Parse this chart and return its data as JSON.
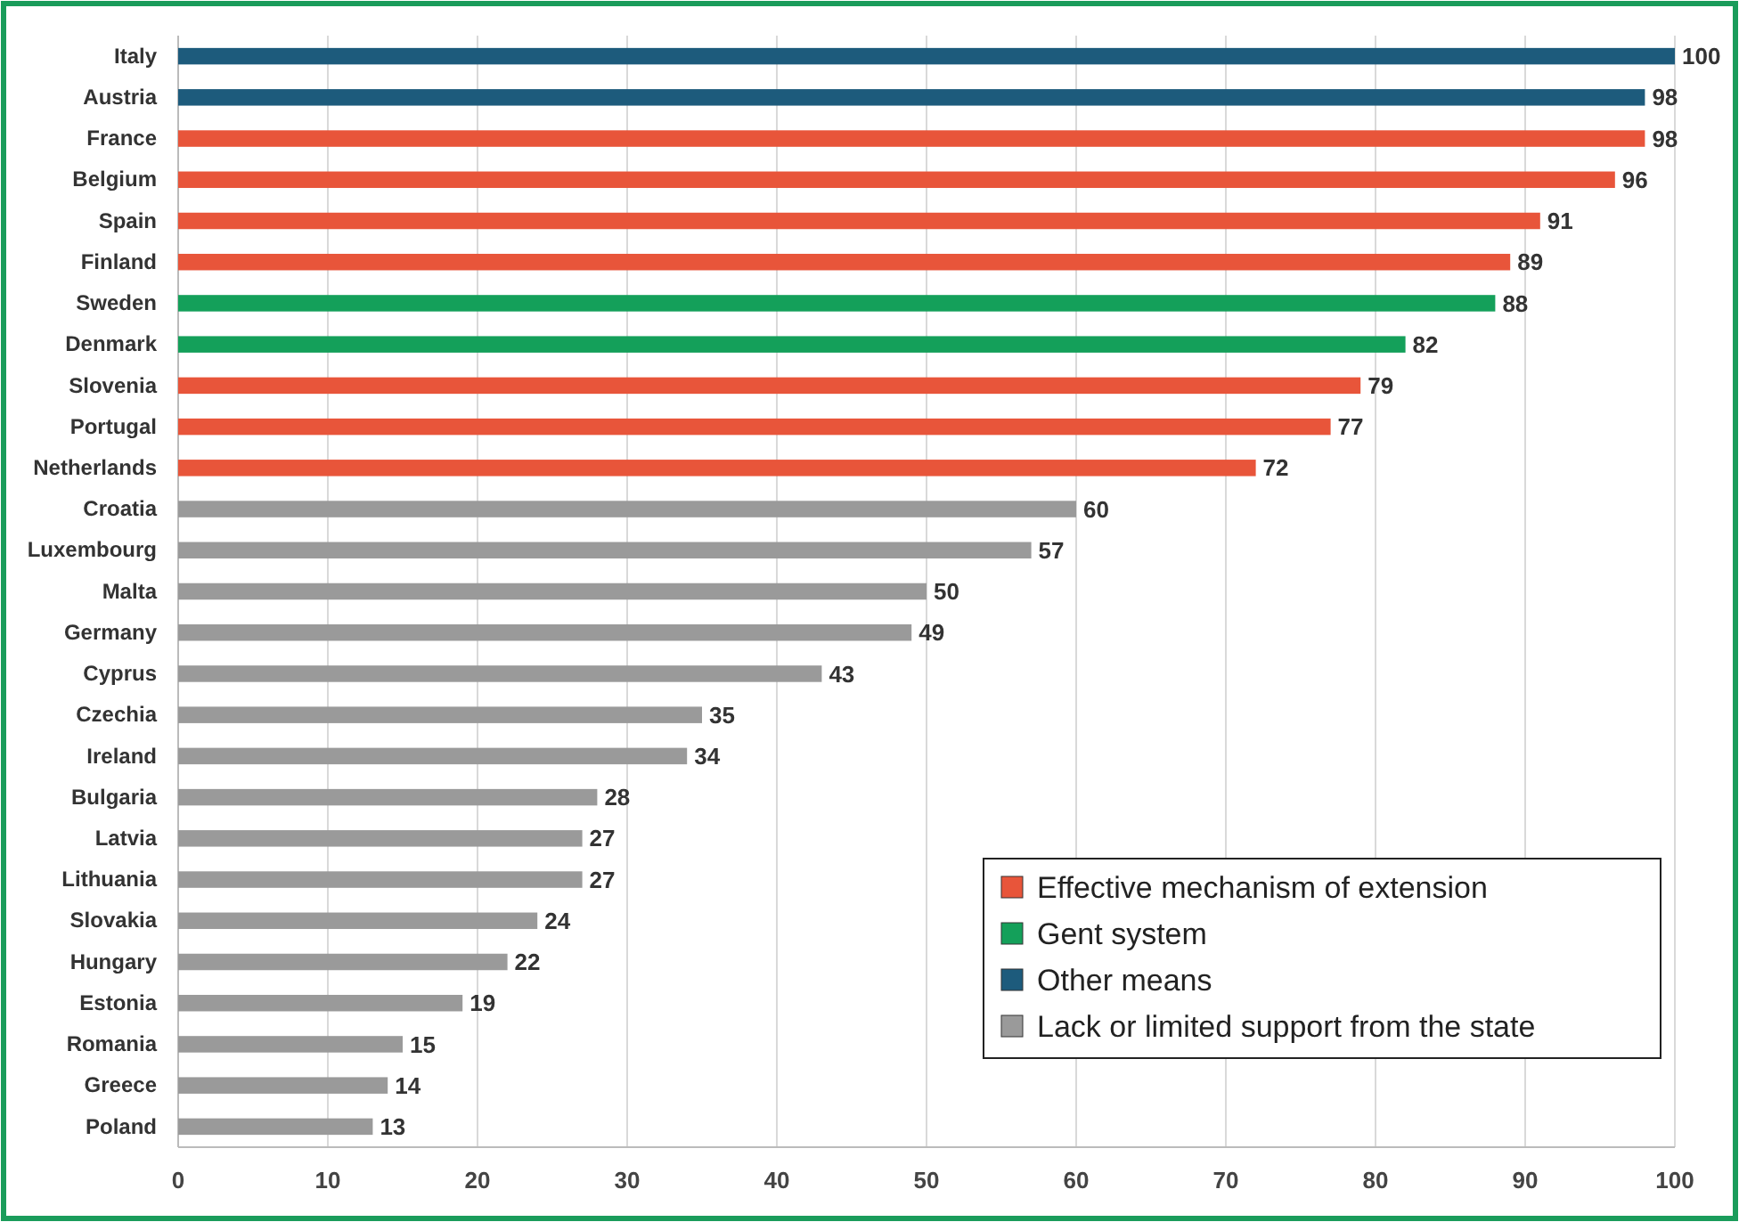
{
  "chart_data": {
    "type": "bar",
    "orientation": "horizontal",
    "categories": [
      "Italy",
      "Austria",
      "France",
      "Belgium",
      "Spain",
      "Finland",
      "Sweden",
      "Denmark",
      "Slovenia",
      "Portugal",
      "Netherlands",
      "Croatia",
      "Luxembourg",
      "Malta",
      "Germany",
      "Cyprus",
      "Czechia",
      "Ireland",
      "Bulgaria",
      "Latvia",
      "Lithuania",
      "Slovakia",
      "Hungary",
      "Estonia",
      "Romania",
      "Greece",
      "Poland"
    ],
    "series": [
      {
        "name": "Effective mechanism of extension",
        "color": "#e8553a",
        "values": [
          null,
          null,
          98,
          96,
          91,
          89,
          null,
          null,
          79,
          77,
          72,
          null,
          null,
          null,
          null,
          null,
          null,
          null,
          null,
          null,
          null,
          null,
          null,
          null,
          null,
          null,
          null
        ]
      },
      {
        "name": "Gent system",
        "color": "#14a05a",
        "values": [
          null,
          null,
          null,
          null,
          null,
          null,
          88,
          82,
          null,
          null,
          null,
          null,
          null,
          null,
          null,
          null,
          null,
          null,
          null,
          null,
          null,
          null,
          null,
          null,
          null,
          null,
          null
        ]
      },
      {
        "name": "Other means",
        "color": "#1d5b7c",
        "values": [
          100,
          98,
          null,
          null,
          null,
          null,
          null,
          null,
          null,
          null,
          null,
          null,
          null,
          null,
          null,
          null,
          null,
          null,
          null,
          null,
          null,
          null,
          null,
          null,
          null,
          null,
          null
        ]
      },
      {
        "name": "Lack or limited support from the state",
        "color": "#9a9a9a",
        "values": [
          null,
          null,
          null,
          null,
          null,
          null,
          null,
          null,
          null,
          null,
          null,
          60,
          57,
          50,
          49,
          43,
          35,
          34,
          28,
          27,
          27,
          24,
          22,
          19,
          15,
          14,
          13
        ]
      }
    ],
    "xlim": [
      0,
      100
    ],
    "xticks": [
      0,
      10,
      20,
      30,
      40,
      50,
      60,
      70,
      80,
      90,
      100
    ],
    "grid": "x",
    "legend": "bottom right",
    "data_labels": true
  }
}
